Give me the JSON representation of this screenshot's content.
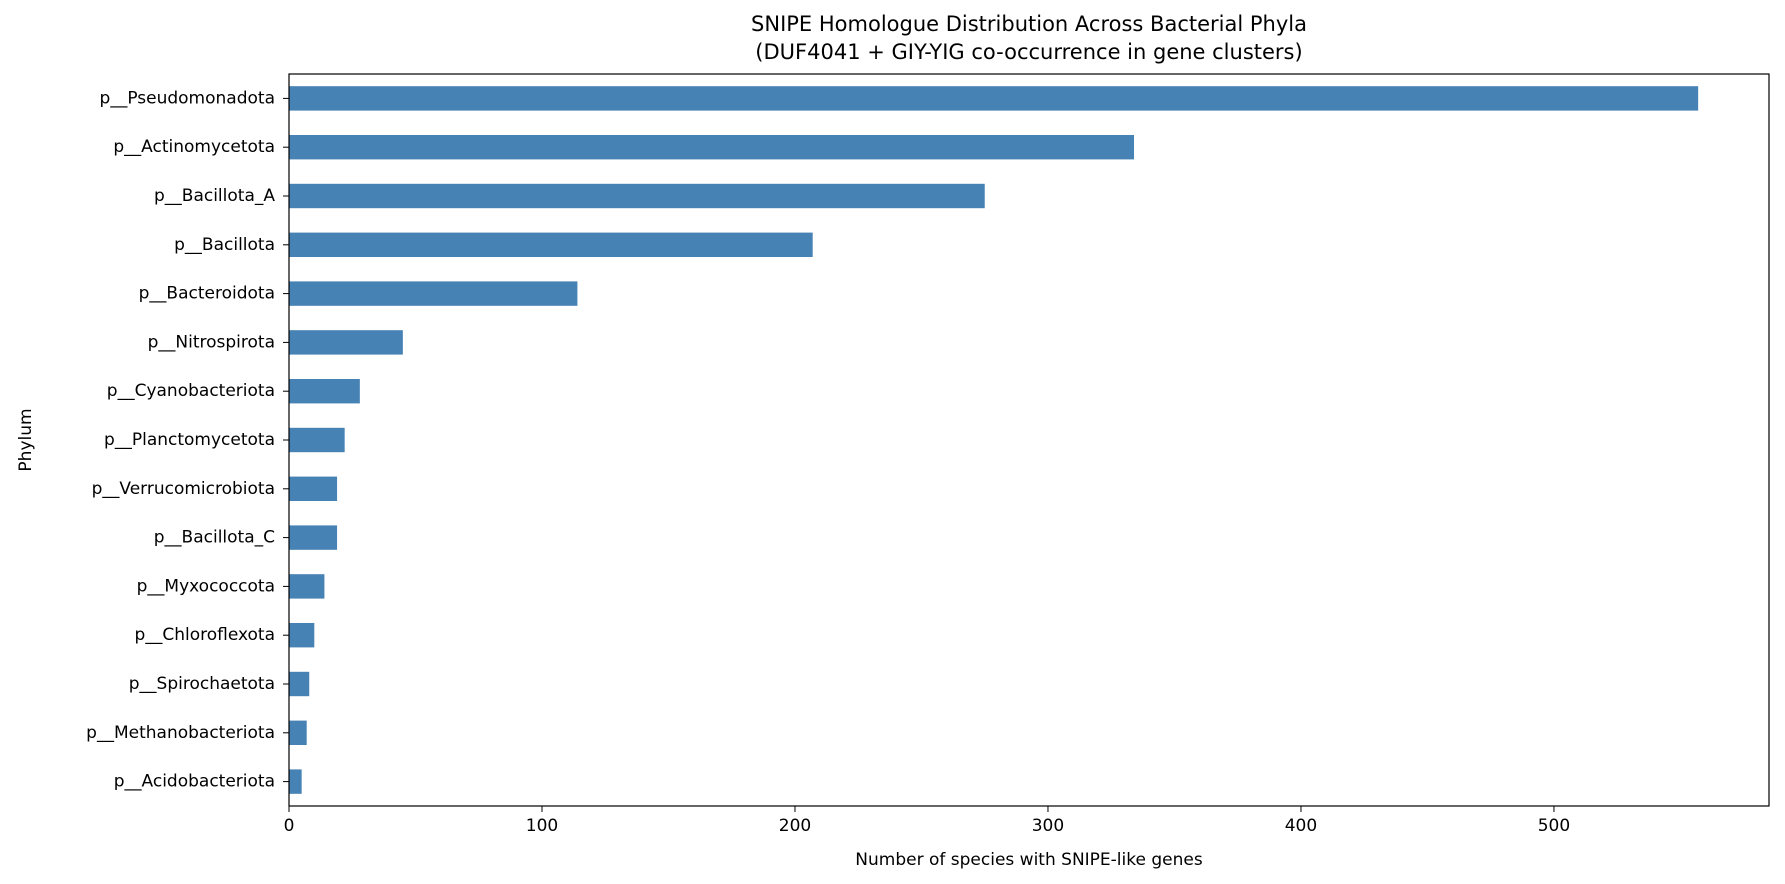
{
  "chart_data": {
    "type": "barh",
    "title": "SNIPE Homologue Distribution Across Bacterial Phyla",
    "subtitle": "(DUF4041 + GIY-YIG co-occurrence in gene clusters)",
    "x_label": "Number of species with SNIPE-like genes",
    "y_label": "Phylum",
    "categories": [
      "p__Pseudomonadota",
      "p__Actinomycetota",
      "p__Bacillota_A",
      "p__Bacillota",
      "p__Bacteroidota",
      "p__Nitrospirota",
      "p__Cyanobacteriota",
      "p__Planctomycetota",
      "p__Verrucomicrobiota",
      "p__Bacillota_C",
      "p__Myxococcota",
      "p__Chloroflexota",
      "p__Spirochaetota",
      "p__Methanobacteriota",
      "p__Acidobacteriota"
    ],
    "values": [
      557,
      334,
      275,
      207,
      114,
      45,
      28,
      22,
      19,
      19,
      14,
      10,
      8,
      7,
      5
    ],
    "color": "#4682b4",
    "xlim": [
      0,
      585
    ],
    "xticks": [
      0,
      100,
      200,
      300,
      400,
      500
    ],
    "grid": false
  }
}
